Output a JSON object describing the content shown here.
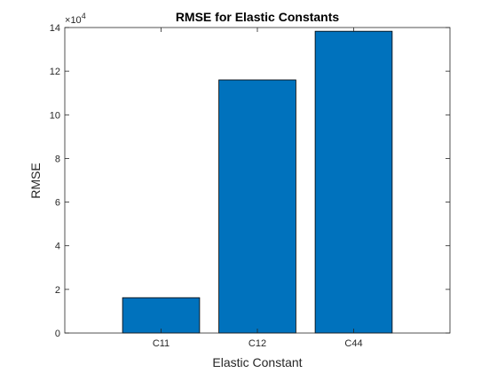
{
  "chart_data": {
    "type": "bar",
    "title": "RMSE for Elastic Constants",
    "xlabel": "Elastic Constant",
    "ylabel": "RMSE",
    "categories": [
      "C11",
      "C12",
      "C44"
    ],
    "values": [
      16200,
      116000,
      138300
    ],
    "ylim": [
      0,
      140000
    ],
    "xlim": [
      0,
      4
    ],
    "yticks": [
      0,
      2,
      4,
      6,
      8,
      10,
      12,
      14
    ],
    "y_exponent_base": "10",
    "y_exponent_power": "4",
    "y_exponent_prefix": "×",
    "bar_color": "#0072BD",
    "bar_edge_color": "#000000",
    "grid": false,
    "box": true
  }
}
